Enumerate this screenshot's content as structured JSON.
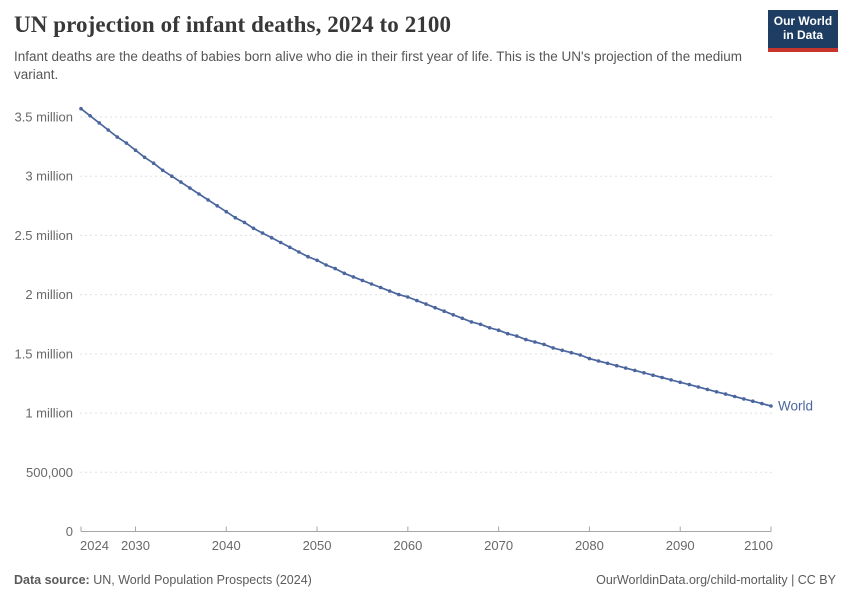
{
  "header": {
    "title": "UN projection of infant deaths, 2024 to 2100",
    "subtitle": "Infant deaths are the deaths of babies born alive who die in their first year of life. This is the UN's projection of the medium variant."
  },
  "logo": {
    "line1": "Our World",
    "line2": "in Data",
    "bg_color": "#1d3d63",
    "stripe_color": "#c5342d"
  },
  "footer": {
    "source_label": "Data source:",
    "source_text": " UN, World Population Prospects (2024)",
    "link_text": "OurWorldinData.org/child-mortality | CC BY"
  },
  "chart_data": {
    "type": "line",
    "title": "UN projection of infant deaths, 2024 to 2100",
    "unit": "million infant deaths",
    "xlabel": "",
    "ylabel": "",
    "xlim": [
      2024,
      2100
    ],
    "ylim": [
      0,
      3.5
    ],
    "grid": true,
    "legend_position": "end-of-line-label",
    "x_ticks": [
      2024,
      2030,
      2040,
      2050,
      2060,
      2070,
      2080,
      2090,
      2100
    ],
    "y_ticks": [
      {
        "value": 0,
        "label": "0"
      },
      {
        "value": 0.5,
        "label": "500,000"
      },
      {
        "value": 1,
        "label": "1 million"
      },
      {
        "value": 1.5,
        "label": "1.5 million"
      },
      {
        "value": 2,
        "label": "2 million"
      },
      {
        "value": 2.5,
        "label": "2.5 million"
      },
      {
        "value": 3,
        "label": "3 million"
      },
      {
        "value": 3.5,
        "label": "3.5 million"
      }
    ],
    "x": [
      2024,
      2025,
      2026,
      2027,
      2028,
      2029,
      2030,
      2031,
      2032,
      2033,
      2034,
      2035,
      2036,
      2037,
      2038,
      2039,
      2040,
      2041,
      2042,
      2043,
      2044,
      2045,
      2046,
      2047,
      2048,
      2049,
      2050,
      2051,
      2052,
      2053,
      2054,
      2055,
      2056,
      2057,
      2058,
      2059,
      2060,
      2061,
      2062,
      2063,
      2064,
      2065,
      2066,
      2067,
      2068,
      2069,
      2070,
      2071,
      2072,
      2073,
      2074,
      2075,
      2076,
      2077,
      2078,
      2079,
      2080,
      2081,
      2082,
      2083,
      2084,
      2085,
      2086,
      2087,
      2088,
      2089,
      2090,
      2091,
      2092,
      2093,
      2094,
      2095,
      2096,
      2097,
      2098,
      2099,
      2100
    ],
    "series": [
      {
        "name": "World",
        "color": "#4b669e",
        "values": [
          3.57,
          3.51,
          3.45,
          3.39,
          3.33,
          3.28,
          3.22,
          3.16,
          3.11,
          3.05,
          3.0,
          2.95,
          2.9,
          2.85,
          2.8,
          2.75,
          2.7,
          2.65,
          2.61,
          2.56,
          2.52,
          2.48,
          2.44,
          2.4,
          2.36,
          2.32,
          2.29,
          2.25,
          2.22,
          2.18,
          2.15,
          2.12,
          2.09,
          2.06,
          2.03,
          2.0,
          1.98,
          1.95,
          1.92,
          1.89,
          1.86,
          1.83,
          1.8,
          1.77,
          1.75,
          1.72,
          1.7,
          1.67,
          1.65,
          1.62,
          1.6,
          1.58,
          1.55,
          1.53,
          1.51,
          1.49,
          1.46,
          1.44,
          1.42,
          1.4,
          1.38,
          1.36,
          1.34,
          1.32,
          1.3,
          1.28,
          1.26,
          1.24,
          1.22,
          1.2,
          1.18,
          1.16,
          1.14,
          1.12,
          1.1,
          1.08,
          1.06
        ]
      }
    ],
    "axis_color": "#a6a6a6",
    "grid_color": "#e0e0e0",
    "tick_label_color": "#696969"
  }
}
